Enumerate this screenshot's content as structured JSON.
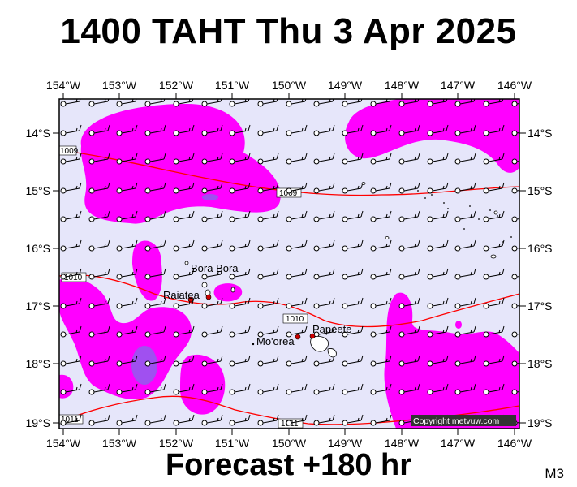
{
  "title": "1400 TAHT Thu 3 Apr 2025",
  "subtitle": "Forecast +180 hr",
  "model_code": "M3",
  "copyright": "Copyright metvuw.com",
  "longitude_labels": [
    "154°W",
    "153°W",
    "152°W",
    "151°W",
    "150°W",
    "149°W",
    "148°W",
    "147°W",
    "146°W"
  ],
  "latitude_labels": [
    "14°S",
    "15°S",
    "16°S",
    "17°S",
    "18°S",
    "19°S"
  ],
  "isobar_labels": [
    "1009",
    "1009",
    "1010",
    "1010",
    "1011",
    "1011"
  ],
  "places": [
    "Bora Bora",
    "Raiatea",
    "Papeete",
    "Mo'orea"
  ],
  "colors": {
    "ocean_background": "#e6e6fa",
    "rain_light": "#ff00ff",
    "rain_heavy": "#a050f0",
    "isobar": "#ff0000",
    "island_marker": "#cc0000"
  }
}
